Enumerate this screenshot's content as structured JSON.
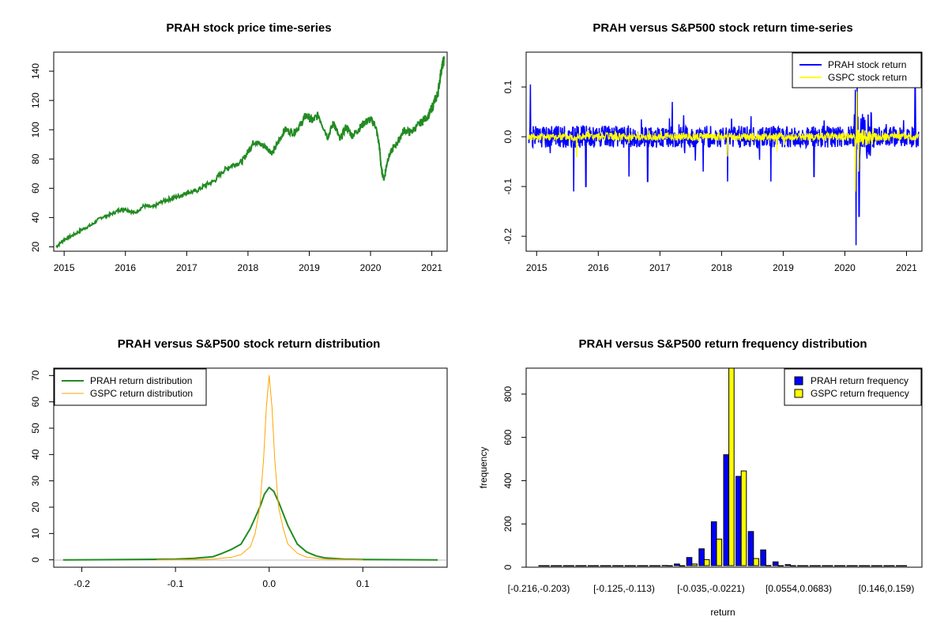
{
  "chart_data": [
    {
      "id": "price",
      "type": "line",
      "title": "PRAH stock price time-series",
      "xlabel": "",
      "ylabel": "",
      "x_ticks": [
        "2015",
        "2016",
        "2017",
        "2018",
        "2019",
        "2020",
        "2021"
      ],
      "y_ticks": [
        20,
        40,
        60,
        80,
        100,
        120,
        140
      ],
      "xlim": [
        2014.83,
        2021.25
      ],
      "ylim": [
        17,
        153
      ],
      "grid": false,
      "legend": null,
      "series": [
        {
          "color": "#228b22",
          "x": [
            2014.87,
            2015.0,
            2015.15,
            2015.3,
            2015.45,
            2015.6,
            2015.75,
            2015.9,
            2016.0,
            2016.15,
            2016.3,
            2016.45,
            2016.6,
            2016.75,
            2016.9,
            2017.0,
            2017.15,
            2017.3,
            2017.45,
            2017.6,
            2017.75,
            2017.9,
            2018.0,
            2018.1,
            2018.2,
            2018.3,
            2018.4,
            2018.5,
            2018.6,
            2018.75,
            2018.85,
            2018.95,
            2019.05,
            2019.15,
            2019.3,
            2019.4,
            2019.5,
            2019.6,
            2019.7,
            2019.8,
            2019.9,
            2020.0,
            2020.08,
            2020.14,
            2020.18,
            2020.22,
            2020.28,
            2020.35,
            2020.45,
            2020.55,
            2020.65,
            2020.75,
            2020.85,
            2020.95,
            2021.0,
            2021.05,
            2021.1,
            2021.15,
            2021.2
          ],
          "y": [
            20,
            25,
            28,
            32,
            35,
            40,
            42,
            45,
            46,
            43,
            48,
            47,
            51,
            53,
            55,
            57,
            58,
            62,
            65,
            72,
            76,
            78,
            85,
            92,
            90,
            88,
            84,
            92,
            100,
            98,
            103,
            110,
            106,
            110,
            95,
            105,
            93,
            102,
            96,
            100,
            105,
            107,
            103,
            90,
            72,
            66,
            80,
            86,
            92,
            100,
            98,
            102,
            106,
            110,
            115,
            120,
            125,
            140,
            148
          ]
        }
      ]
    },
    {
      "id": "returns",
      "type": "line",
      "title": "PRAH versus S&P500 stock return time-series",
      "xlabel": "",
      "ylabel": "",
      "x_ticks": [
        "2015",
        "2016",
        "2017",
        "2018",
        "2019",
        "2020",
        "2021"
      ],
      "y_ticks": [
        "-0.2",
        "-0.1",
        "0.0",
        "0.1"
      ],
      "xlim": [
        2014.83,
        2021.25
      ],
      "ylim": [
        -0.23,
        0.17
      ],
      "grid": false,
      "legend": "top-right",
      "series": [
        {
          "name": "PRAH stock return",
          "color": "#0000ff",
          "x_start": 2014.87,
          "x_end": 2021.2,
          "amplitude": 0.022,
          "spikes": [
            [
              2014.9,
              0.105
            ],
            [
              2015.6,
              -0.11
            ],
            [
              2015.8,
              -0.1
            ],
            [
              2016.5,
              -0.08
            ],
            [
              2016.8,
              -0.09
            ],
            [
              2017.2,
              0.07
            ],
            [
              2017.7,
              -0.07
            ],
            [
              2018.1,
              -0.09
            ],
            [
              2018.8,
              -0.09
            ],
            [
              2019.5,
              -0.08
            ],
            [
              2020.18,
              -0.218
            ],
            [
              2020.2,
              0.11
            ],
            [
              2020.23,
              -0.16
            ],
            [
              2021.14,
              0.11
            ]
          ]
        },
        {
          "name": "GSPC stock return",
          "color": "#ffff00",
          "x_start": 2014.87,
          "x_end": 2021.2,
          "amplitude": 0.008,
          "spikes": [
            [
              2015.65,
              -0.04
            ],
            [
              2018.1,
              -0.04
            ],
            [
              2018.9,
              -0.03
            ],
            [
              2020.17,
              -0.11
            ],
            [
              2020.19,
              0.09
            ],
            [
              2020.22,
              -0.07
            ]
          ]
        }
      ]
    },
    {
      "id": "density",
      "type": "line",
      "title": "PRAH versus S&P500 stock return distribution",
      "xlabel": "",
      "ylabel": "",
      "x_ticks": [
        "-0.2",
        "-0.1",
        "0.0",
        "0.1"
      ],
      "y_ticks": [
        0,
        10,
        20,
        30,
        40,
        50,
        60,
        70
      ],
      "xlim": [
        -0.23,
        0.19
      ],
      "ylim": [
        -2.8,
        72.8
      ],
      "grid": false,
      "legend": "top-left",
      "series": [
        {
          "name": "PRAH return distribution",
          "color": "#228b22",
          "x": [
            -0.22,
            -0.15,
            -0.1,
            -0.08,
            -0.06,
            -0.05,
            -0.04,
            -0.03,
            -0.02,
            -0.01,
            -0.005,
            0.0,
            0.005,
            0.01,
            0.02,
            0.03,
            0.04,
            0.05,
            0.06,
            0.08,
            0.1,
            0.18
          ],
          "y": [
            0,
            0.1,
            0.3,
            0.6,
            1.2,
            2.5,
            4,
            6,
            12,
            20,
            25,
            27.5,
            26,
            22,
            13,
            6,
            3,
            1.5,
            0.7,
            0.3,
            0.1,
            0
          ]
        },
        {
          "name": "GSPC return distribution",
          "color": "#ffa500",
          "x": [
            -0.12,
            -0.08,
            -0.06,
            -0.04,
            -0.03,
            -0.02,
            -0.015,
            -0.01,
            -0.006,
            -0.003,
            0.0,
            0.003,
            0.006,
            0.01,
            0.015,
            0.02,
            0.03,
            0.04,
            0.06,
            0.1
          ],
          "y": [
            0,
            0.1,
            0.3,
            1,
            2,
            5,
            10,
            20,
            38,
            58,
            70,
            58,
            38,
            20,
            12,
            6,
            2.5,
            1,
            0.3,
            0
          ]
        }
      ]
    },
    {
      "id": "histogram",
      "type": "bar",
      "title": "PRAH versus S&P500 return frequency distribution",
      "xlabel": "return",
      "ylabel": "frequency",
      "x_ticks": [
        "[-0.216,-0.203)",
        "[-0.125,-0.113)",
        "[-0.035,-0.0221)",
        "[0.0554,0.0683)",
        "[0.146,0.159)"
      ],
      "y_ticks": [
        0,
        200,
        400,
        600,
        800
      ],
      "ylim": [
        0,
        920
      ],
      "grid": false,
      "legend": "top-right",
      "series": [
        {
          "name": "PRAH return frequency",
          "color": "#0000ff",
          "values": [
            3,
            1,
            1,
            1,
            1,
            2,
            3,
            3,
            5,
            4,
            8,
            15,
            45,
            85,
            210,
            520,
            420,
            165,
            80,
            25,
            12,
            5,
            4,
            3,
            2,
            2,
            1,
            1,
            1,
            1
          ]
        },
        {
          "name": "GSPC return frequency",
          "color": "#ffff00",
          "values": [
            0,
            0,
            0,
            0,
            0,
            1,
            1,
            1,
            1,
            2,
            2,
            4,
            15,
            35,
            130,
            920,
            445,
            40,
            8,
            3,
            2,
            1,
            1,
            0,
            0,
            0,
            0,
            0,
            0,
            0
          ]
        }
      ]
    }
  ]
}
